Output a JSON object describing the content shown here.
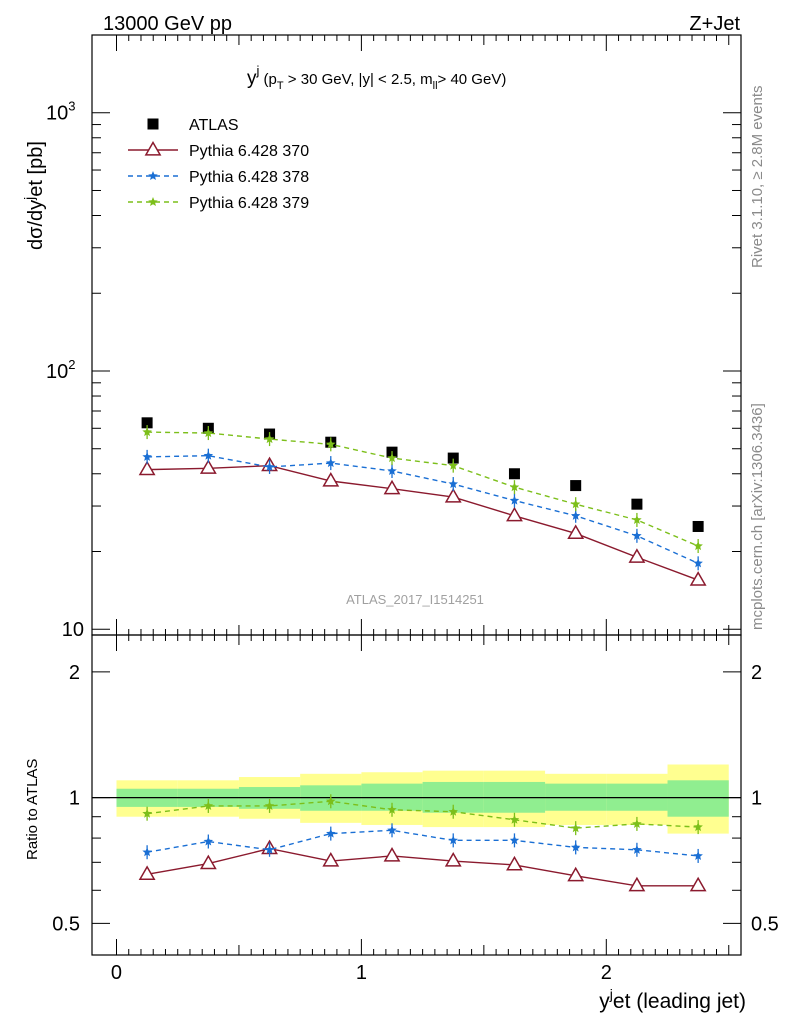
{
  "header": {
    "left_label": "13000 GeV pp",
    "right_label": "Z+Jet",
    "side_label_top": "Rivet 3.1.10, ≥ 2.8M events",
    "side_label_bottom": "mcplots.cern.ch [arXiv:1306.3436]",
    "watermark": "ATLAS_2017_I1514251"
  },
  "chart_data": [
    {
      "type": "scatter",
      "title": "y^j (p_T > 30 GeV, |y| < 2.5, m_ll > 40 GeV)",
      "title_parts": {
        "main": "y",
        "main_sup": "j",
        "p": " (p",
        "p_sub": "T",
        "rest1": " > 30 GeV, |y| < 2.5, m",
        "m_sub": "ll",
        "rest2": "> 40 GeV)"
      },
      "ylabel": "dσ/dy^jet [pb]",
      "ylabel_parts": {
        "a": "dσ/dy",
        "sup": "j",
        "b": "et [pb]"
      },
      "yscale": "log",
      "ylim": [
        9.5,
        2000
      ],
      "xlim": [
        -0.1,
        2.55
      ],
      "y_ticks": [
        {
          "value": 10,
          "label": "10"
        },
        {
          "value": 100,
          "label": "10",
          "exp": "2"
        },
        {
          "value": 1000,
          "label": "10",
          "exp": "3"
        }
      ],
      "x": [
        0.125,
        0.375,
        0.625,
        0.875,
        1.125,
        1.375,
        1.625,
        1.875,
        2.125,
        2.375
      ],
      "x_edges": [
        0,
        0.25,
        0.5,
        0.75,
        1.0,
        1.25,
        1.5,
        1.75,
        2.0,
        2.25,
        2.5
      ],
      "series": [
        {
          "name": "ATLAS",
          "color": "#000000",
          "marker": "square",
          "line": "none",
          "values": [
            63,
            60,
            57,
            53,
            48.5,
            46,
            40,
            36,
            30.5,
            25
          ]
        },
        {
          "name": "Pythia 6.428 370",
          "color": "#8b1a2e",
          "marker": "triangle-open",
          "line": "solid",
          "values": [
            41.5,
            42,
            43,
            37.5,
            35,
            32.5,
            27.5,
            23.5,
            19,
            15.5
          ]
        },
        {
          "name": "Pythia 6.428 378",
          "color": "#1a6fd4",
          "marker": "star",
          "line": "dashed",
          "values": [
            46.5,
            47,
            42.5,
            44,
            41,
            36.5,
            31.5,
            27.5,
            23,
            18
          ]
        },
        {
          "name": "Pythia 6.428 379",
          "color": "#7cbf1a",
          "marker": "star",
          "line": "dashed",
          "values": [
            58,
            57.5,
            54.5,
            52,
            46,
            43,
            35.5,
            30.5,
            26.5,
            21
          ]
        }
      ],
      "legend_placement": "top-left"
    },
    {
      "type": "line",
      "ylabel": "Ratio to ATLAS",
      "xlabel": "y^jet (leading jet)",
      "xlabel_parts": {
        "a": "y",
        "sup": "j",
        "b": "et (leading jet)"
      },
      "yscale": "log",
      "ylim": [
        0.42,
        2.45
      ],
      "xlim": [
        -0.1,
        2.55
      ],
      "y_ticks": [
        {
          "value": 0.5,
          "label": "0.5"
        },
        {
          "value": 1,
          "label": "1"
        },
        {
          "value": 2,
          "label": "2"
        }
      ],
      "x_ticks": [
        {
          "value": 0,
          "label": "0"
        },
        {
          "value": 1,
          "label": "1"
        },
        {
          "value": 2,
          "label": "2"
        }
      ],
      "x": [
        0.125,
        0.375,
        0.625,
        0.875,
        1.125,
        1.375,
        1.625,
        1.875,
        2.125,
        2.375
      ],
      "x_edges": [
        0,
        0.25,
        0.5,
        0.75,
        1.0,
        1.25,
        1.5,
        1.75,
        2.0,
        2.25,
        2.5
      ],
      "band_stat": {
        "color": "#90ee90",
        "lo": [
          0.95,
          0.95,
          0.94,
          0.93,
          0.93,
          0.92,
          0.92,
          0.93,
          0.93,
          0.9
        ],
        "hi": [
          1.05,
          1.05,
          1.06,
          1.07,
          1.08,
          1.09,
          1.09,
          1.08,
          1.08,
          1.1
        ]
      },
      "band_total": {
        "color": "#ffff90",
        "lo": [
          0.9,
          0.9,
          0.89,
          0.87,
          0.86,
          0.85,
          0.85,
          0.86,
          0.86,
          0.82
        ],
        "hi": [
          1.1,
          1.1,
          1.12,
          1.14,
          1.15,
          1.16,
          1.16,
          1.14,
          1.14,
          1.2
        ]
      },
      "series": [
        {
          "name": "Pythia 6.428 370",
          "color": "#8b1a2e",
          "marker": "triangle-open",
          "line": "solid",
          "values": [
            0.655,
            0.695,
            0.755,
            0.705,
            0.725,
            0.705,
            0.69,
            0.65,
            0.615,
            0.615
          ]
        },
        {
          "name": "Pythia 6.428 378",
          "color": "#1a6fd4",
          "marker": "star",
          "line": "dashed",
          "values": [
            0.74,
            0.785,
            0.75,
            0.82,
            0.835,
            0.79,
            0.79,
            0.76,
            0.75,
            0.725
          ]
        },
        {
          "name": "Pythia 6.428 379",
          "color": "#7cbf1a",
          "marker": "star",
          "line": "dashed",
          "values": [
            0.915,
            0.955,
            0.955,
            0.98,
            0.935,
            0.925,
            0.885,
            0.845,
            0.865,
            0.85
          ]
        }
      ]
    }
  ]
}
